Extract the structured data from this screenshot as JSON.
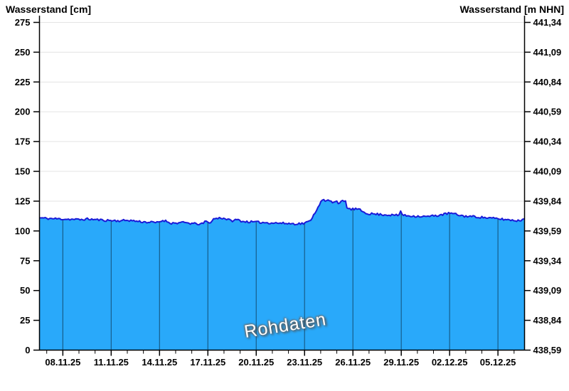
{
  "chart_data": {
    "type": "area",
    "title_left": "Wasserstand [cm]",
    "title_right": "Wasserstand [m NHN]",
    "watermark": "Rohdaten",
    "colors": {
      "fill": "#29a9fa",
      "line": "#1a1ad8",
      "grid_horizontal": "#e3e3e3",
      "axis": "#000000",
      "vline_color": "#000000",
      "vline_opacity": 0.45,
      "tick_text": "#000000"
    },
    "y_left": {
      "min": 0,
      "max": 275,
      "step": 25,
      "tick_labels": [
        "275",
        "250",
        "225",
        "200",
        "175",
        "150",
        "125",
        "100",
        "75",
        "50",
        "25",
        "0"
      ]
    },
    "y_right": {
      "tick_labels": [
        "441,34",
        "441,09",
        "440,84",
        "440,59",
        "440,34",
        "440,09",
        "439,84",
        "439,59",
        "439,34",
        "439,09",
        "438,84",
        "438,59"
      ]
    },
    "x_axis": {
      "labels": [
        "08.11.25",
        "11.11.25",
        "14.11.25",
        "17.11.25",
        "20.11.25",
        "23.11.25",
        "26.11.25",
        "29.11.25",
        "02.12.25",
        "05.12.25"
      ],
      "days_total": 30.1,
      "first_minor_day": 0.45,
      "first_major_day": 1.45,
      "major_every_days": 3,
      "minor_every_days": 1
    },
    "series": [
      {
        "name": "Rohdaten",
        "unit": "cm",
        "points": [
          [
            0.0,
            111
          ],
          [
            0.5,
            110.5
          ],
          [
            1.5,
            110
          ],
          [
            2.5,
            109.5
          ],
          [
            3.0,
            110
          ],
          [
            4.0,
            109
          ],
          [
            5.0,
            108.5
          ],
          [
            5.5,
            109
          ],
          [
            6.5,
            107.5
          ],
          [
            7.3,
            107
          ],
          [
            7.7,
            109
          ],
          [
            8.2,
            106.5
          ],
          [
            9.0,
            107
          ],
          [
            9.6,
            106
          ],
          [
            10.1,
            105.8
          ],
          [
            10.35,
            108.5
          ],
          [
            10.5,
            106
          ],
          [
            10.8,
            110
          ],
          [
            11.2,
            111
          ],
          [
            11.5,
            110.5
          ],
          [
            11.9,
            108.5
          ],
          [
            12.3,
            109.5
          ],
          [
            12.6,
            108
          ],
          [
            13.2,
            107.5
          ],
          [
            14.0,
            107
          ],
          [
            15.0,
            106.5
          ],
          [
            15.8,
            106
          ],
          [
            16.4,
            106.3
          ],
          [
            16.75,
            108
          ],
          [
            17.05,
            114
          ],
          [
            17.35,
            122
          ],
          [
            17.6,
            126.5
          ],
          [
            17.75,
            124.5
          ],
          [
            17.95,
            126
          ],
          [
            18.15,
            124
          ],
          [
            18.4,
            125.5
          ],
          [
            18.6,
            123
          ],
          [
            18.8,
            125
          ],
          [
            19.0,
            124.5
          ],
          [
            19.1,
            119
          ],
          [
            19.35,
            118
          ],
          [
            19.6,
            118.5
          ],
          [
            19.9,
            117.5
          ],
          [
            20.1,
            116
          ],
          [
            20.4,
            114.5
          ],
          [
            21.0,
            114
          ],
          [
            21.6,
            113.5
          ],
          [
            22.3,
            113
          ],
          [
            22.42,
            117
          ],
          [
            22.55,
            113
          ],
          [
            23.2,
            112.5
          ],
          [
            24.0,
            112
          ],
          [
            24.7,
            113
          ],
          [
            25.1,
            114
          ],
          [
            25.45,
            115
          ],
          [
            25.8,
            114
          ],
          [
            26.3,
            112.5
          ],
          [
            27.0,
            112
          ],
          [
            27.8,
            111
          ],
          [
            28.6,
            110
          ],
          [
            29.4,
            109
          ],
          [
            29.75,
            108.5
          ],
          [
            29.95,
            109.5
          ],
          [
            30.1,
            110.5
          ]
        ]
      }
    ],
    "noise": {
      "amplitude_cm": 0.9,
      "step_days": 0.09,
      "seed": 11
    }
  }
}
